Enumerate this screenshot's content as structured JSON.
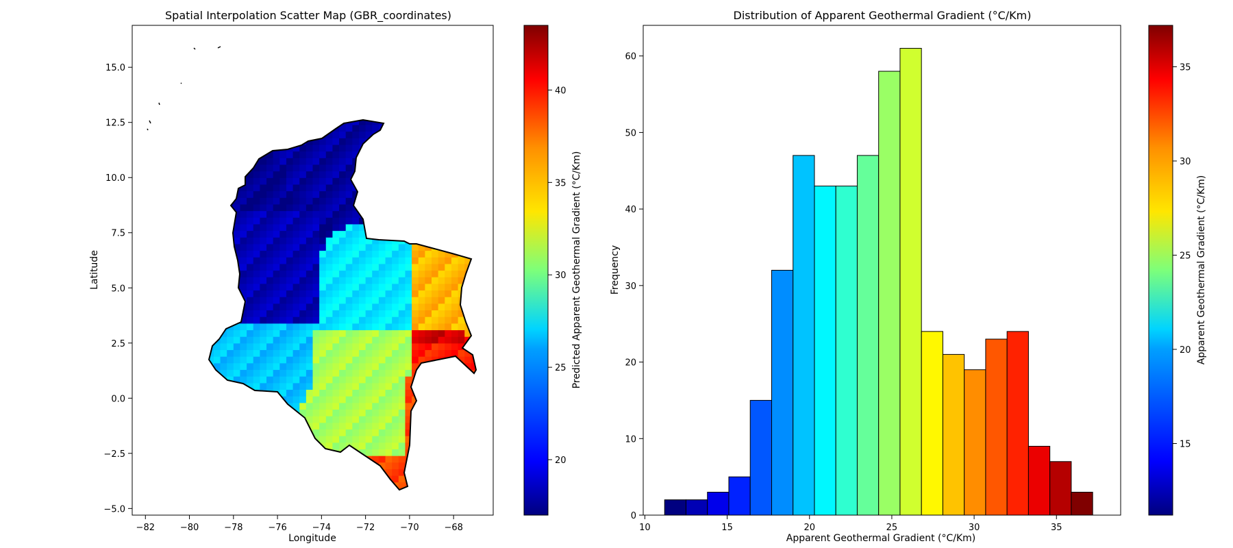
{
  "chart_data": [
    {
      "type": "heatmap",
      "title": "Spatial Interpolation Scatter Map (GBR_coordinates)",
      "xlabel": "Longitude",
      "ylabel": "Latitude",
      "xlim": [
        -82.6,
        -66.2
      ],
      "ylim": [
        -5.3,
        16.9
      ],
      "xticks": [
        -82,
        -80,
        -78,
        -76,
        -74,
        -72,
        -70,
        -68
      ],
      "xtick_labels": [
        "−82",
        "−80",
        "−78",
        "−76",
        "−74",
        "−72",
        "−70",
        "−68"
      ],
      "yticks": [
        -5.0,
        -2.5,
        0.0,
        2.5,
        5.0,
        7.5,
        10.0,
        12.5,
        15.0
      ],
      "ytick_labels": [
        "−5.0",
        "−2.5",
        "0.0",
        "2.5",
        "5.0",
        "7.5",
        "10.0",
        "12.5",
        "15.0"
      ],
      "colormap": "jet",
      "colorbar": {
        "label": "Predicted Apparent Geothermal Gradient (°C/Km)",
        "range": [
          17.0,
          43.5
        ],
        "ticks": [
          20,
          25,
          30,
          35,
          40
        ],
        "tick_labels": [
          "20",
          "25",
          "30",
          "35",
          "40"
        ]
      },
      "regions": [
        {
          "lon": [
            -77.5,
            -75.5
          ],
          "lat": [
            6.0,
            10.5
          ],
          "value": 19
        },
        {
          "lon": [
            -79.2,
            -74.0
          ],
          "lat": [
            3.5,
            8.5
          ],
          "value": 20
        },
        {
          "lon": [
            -75.5,
            -71.0
          ],
          "lat": [
            9.0,
            12.4
          ],
          "value": 19.5
        },
        {
          "lon": [
            -79.5,
            -73.5
          ],
          "lat": [
            0.5,
            3.0
          ],
          "value": 27
        },
        {
          "lon": [
            -73.5,
            -70.0
          ],
          "lat": [
            3.0,
            7.0
          ],
          "value": 28
        },
        {
          "lon": [
            -74.5,
            -70.0
          ],
          "lat": [
            -2.5,
            3.0
          ],
          "value": 33
        },
        {
          "lon": [
            -70.0,
            -67.2
          ],
          "lat": [
            2.7,
            6.2
          ],
          "value": 37
        },
        {
          "lon": [
            -70.0,
            -67.0
          ],
          "lat": [
            1.2,
            2.7
          ],
          "value": 41
        },
        {
          "lon": [
            -70.3,
            -69.5
          ],
          "lat": [
            -4.0,
            1.0
          ],
          "value": 40
        },
        {
          "lon": [
            -70.0,
            -67.5
          ],
          "lat": [
            2.5,
            3.0
          ],
          "value": 43
        }
      ]
    },
    {
      "type": "bar",
      "title": "Distribution of Apparent Geothermal Gradient (°C/Km)",
      "xlabel": "Apparent Geothermal Gradient (°C/Km)",
      "ylabel": "Frequency",
      "xlim": [
        9.9,
        38.9
      ],
      "ylim": [
        0,
        64
      ],
      "xticks": [
        10,
        15,
        20,
        25,
        30,
        35
      ],
      "yticks": [
        0,
        10,
        20,
        30,
        40,
        50,
        60
      ],
      "bin_start": 11.2,
      "bin_width": 1.3,
      "values": [
        2,
        2,
        3,
        5,
        15,
        32,
        47,
        43,
        43,
        47,
        58,
        61,
        24,
        21,
        19,
        23,
        24,
        9,
        7,
        3
      ],
      "colormap": "jet",
      "colorbar": {
        "label": "Apparent Geothermal Gradient (°C/Km)",
        "range": [
          11.2,
          37.2
        ],
        "ticks": [
          15,
          20,
          25,
          30,
          35
        ],
        "tick_labels": [
          "15",
          "20",
          "25",
          "30",
          "35"
        ]
      }
    }
  ]
}
